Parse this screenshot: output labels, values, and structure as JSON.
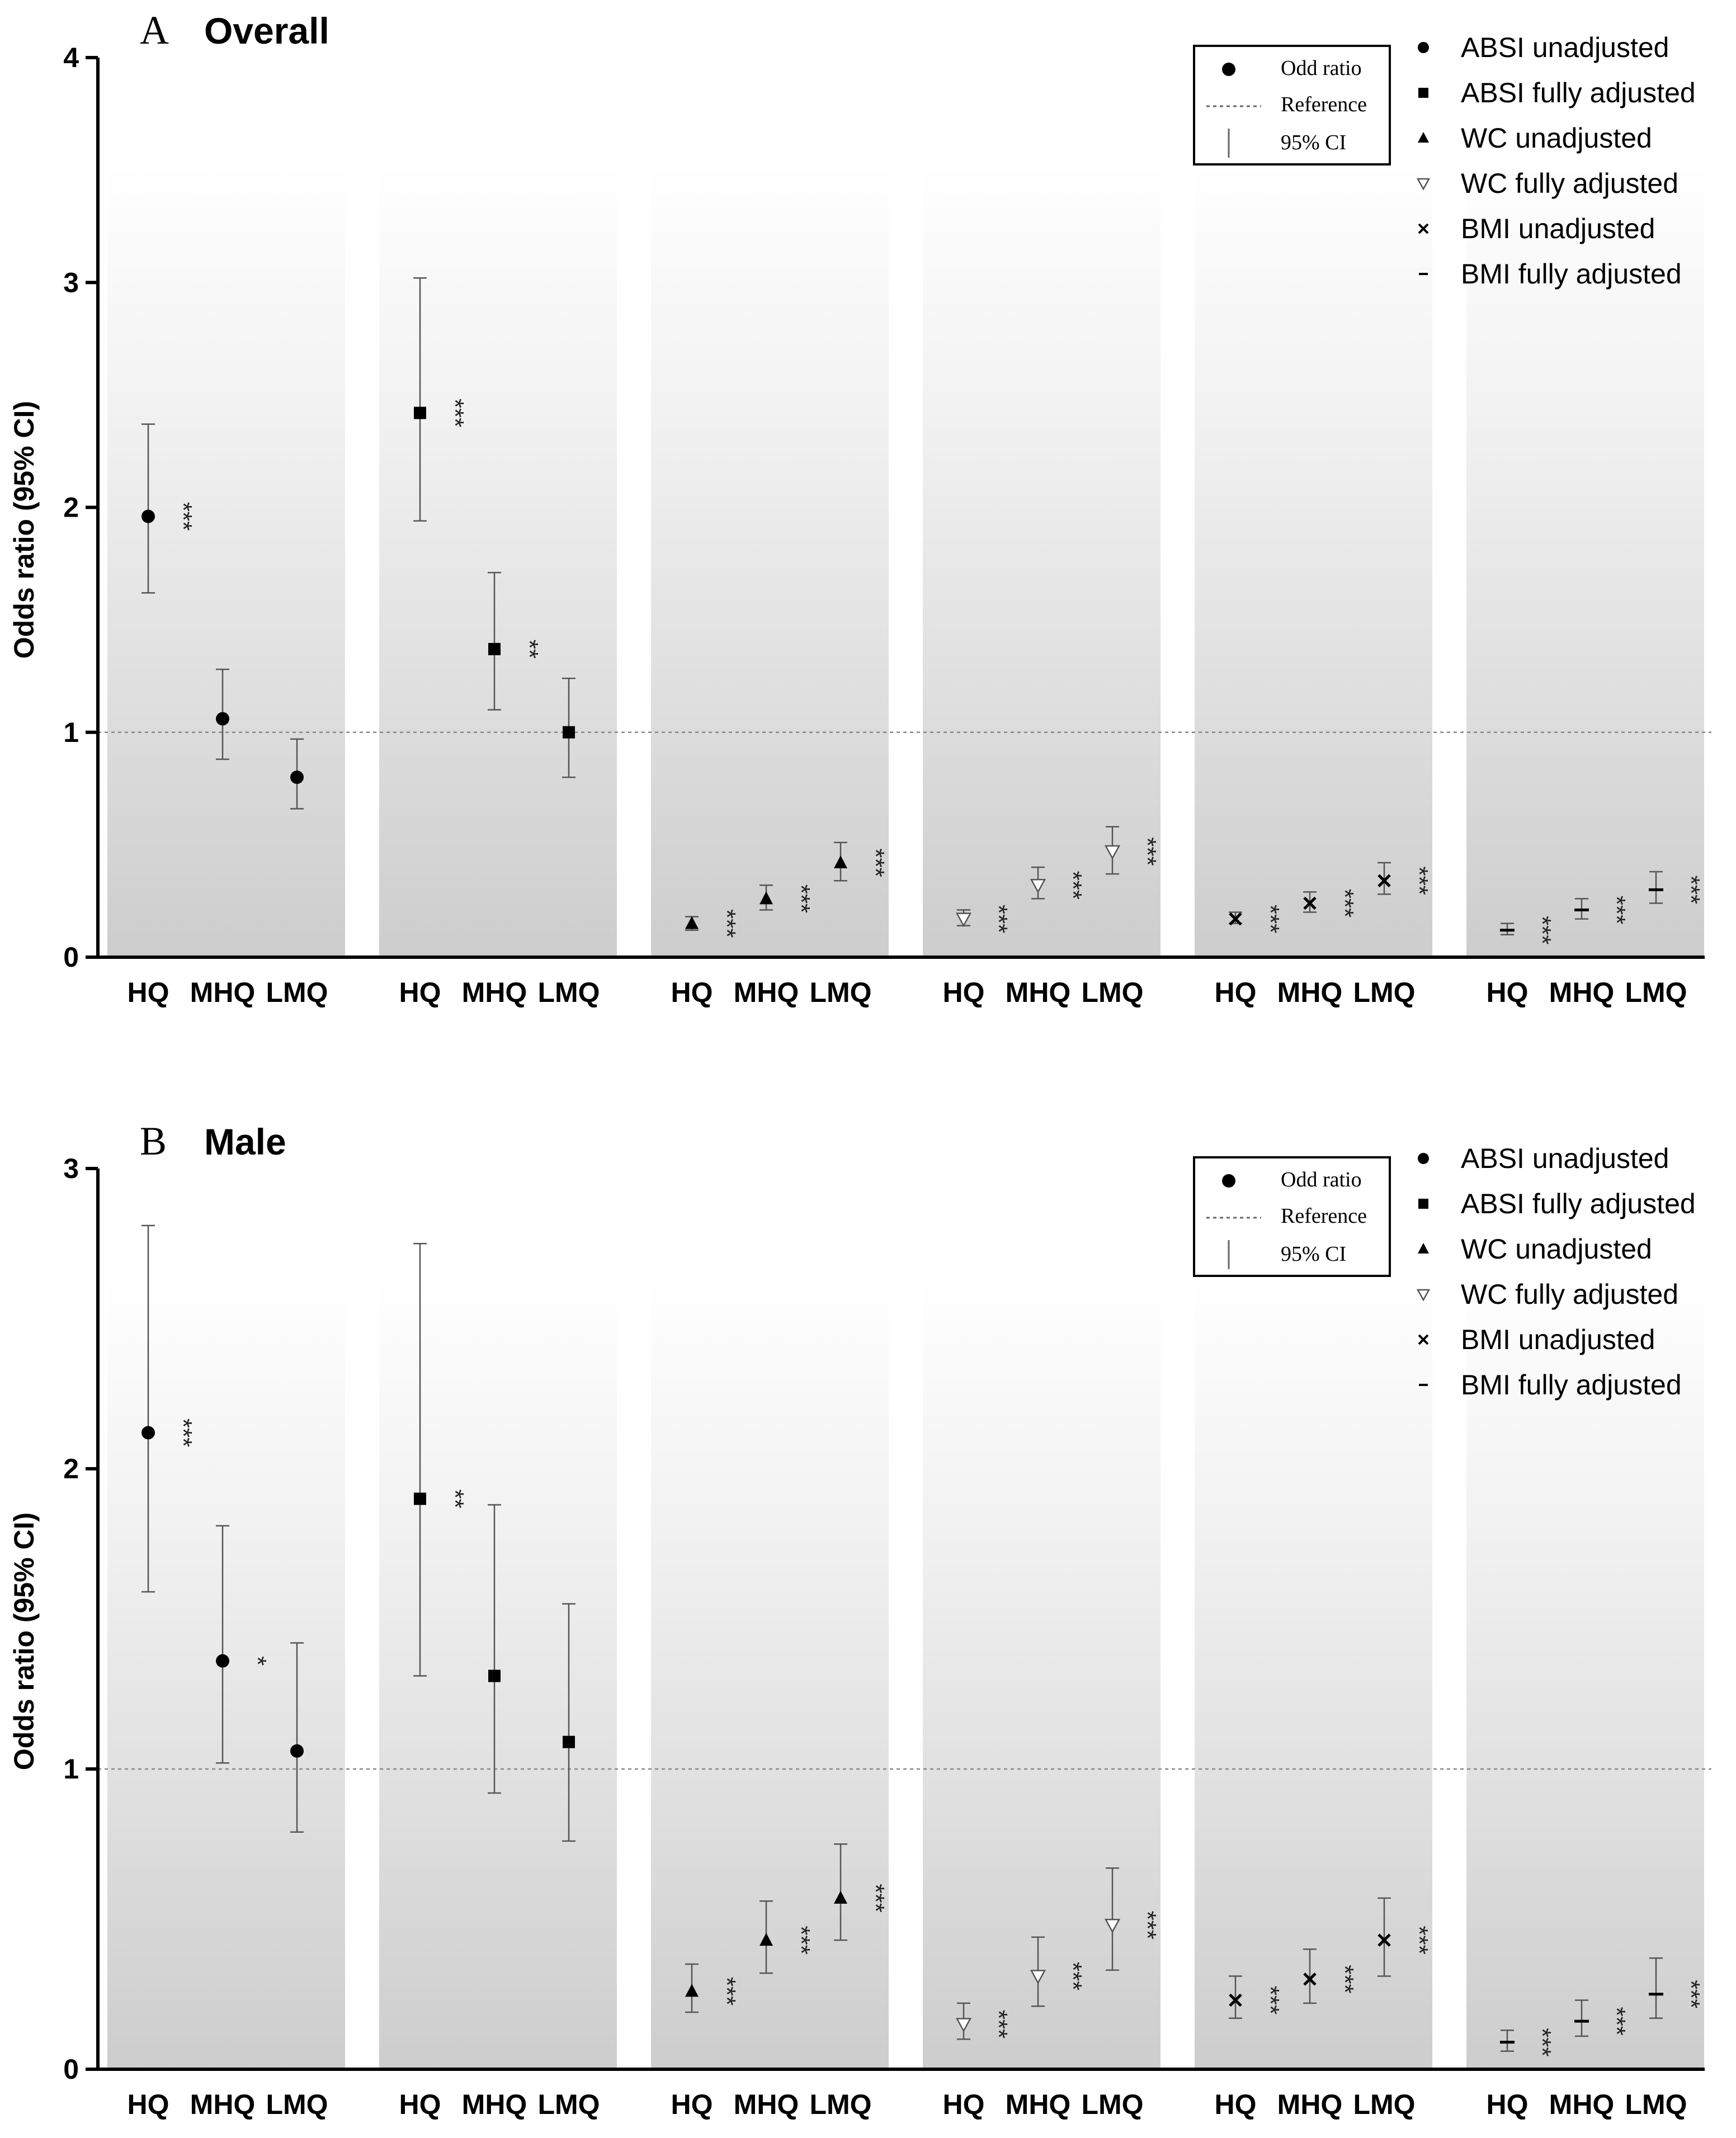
{
  "chart_data": [
    {
      "type": "scatter",
      "panel_letter": "A",
      "title": "Overall",
      "ylabel": "Odds ratio (95% CI)",
      "ylim": [
        0,
        4
      ],
      "yticks": [
        "0",
        "1",
        "2",
        "3",
        "4"
      ],
      "reference_line": 1,
      "categories": [
        "HQ",
        "MHQ",
        "LMQ"
      ],
      "series": [
        {
          "name": "ABSI unadjusted",
          "marker": "circle",
          "values": [
            1.96,
            1.06,
            0.8
          ],
          "lower": [
            1.62,
            0.88,
            0.66
          ],
          "upper": [
            2.37,
            1.28,
            0.97
          ],
          "sig": [
            "***",
            "",
            ""
          ]
        },
        {
          "name": "ABSI fully adjusted",
          "marker": "square",
          "values": [
            2.42,
            1.37,
            1.0
          ],
          "lower": [
            1.94,
            1.1,
            0.8
          ],
          "upper": [
            3.02,
            1.71,
            1.24
          ],
          "sig": [
            "***",
            "**",
            ""
          ]
        },
        {
          "name": "WC unadjusted",
          "marker": "triangle-up",
          "values": [
            0.15,
            0.26,
            0.42
          ],
          "lower": [
            0.12,
            0.21,
            0.34
          ],
          "upper": [
            0.18,
            0.32,
            0.51
          ],
          "sig": [
            "***",
            "***",
            "***"
          ]
        },
        {
          "name": "WC fully adjusted",
          "marker": "triangle-down",
          "values": [
            0.17,
            0.32,
            0.47
          ],
          "lower": [
            0.14,
            0.26,
            0.37
          ],
          "upper": [
            0.21,
            0.4,
            0.58
          ],
          "sig": [
            "***",
            "***",
            "***"
          ]
        },
        {
          "name": "BMI unadjusted",
          "marker": "x",
          "values": [
            0.17,
            0.24,
            0.34
          ],
          "lower": [
            0.15,
            0.2,
            0.28
          ],
          "upper": [
            0.2,
            0.29,
            0.42
          ],
          "sig": [
            "***",
            "***",
            "***"
          ]
        },
        {
          "name": "BMI fully adjusted",
          "marker": "dash",
          "values": [
            0.12,
            0.21,
            0.3
          ],
          "lower": [
            0.1,
            0.17,
            0.24
          ],
          "upper": [
            0.15,
            0.26,
            0.38
          ],
          "sig": [
            "***",
            "***",
            "***"
          ]
        }
      ],
      "inset_legend": [
        "Odd ratio",
        "Reference",
        "95% CI"
      ]
    },
    {
      "type": "scatter",
      "panel_letter": "B",
      "title": "Male",
      "ylabel": "Odds ratio (95% CI)",
      "ylim": [
        0,
        3
      ],
      "yticks": [
        "0",
        "1",
        "2",
        "3"
      ],
      "reference_line": 1,
      "categories": [
        "HQ",
        "MHQ",
        "LMQ"
      ],
      "series": [
        {
          "name": "ABSI unadjusted",
          "marker": "circle",
          "values": [
            2.12,
            1.36,
            1.06
          ],
          "lower": [
            1.59,
            1.02,
            0.79
          ],
          "upper": [
            2.81,
            1.81,
            1.42
          ],
          "sig": [
            "***",
            "*",
            ""
          ]
        },
        {
          "name": "ABSI fully adjusted",
          "marker": "square",
          "values": [
            1.9,
            1.31,
            1.09
          ],
          "lower": [
            1.31,
            0.92,
            0.76
          ],
          "upper": [
            2.75,
            1.88,
            1.55
          ],
          "sig": [
            "**",
            "",
            ""
          ]
        },
        {
          "name": "WC unadjusted",
          "marker": "triangle-up",
          "values": [
            0.26,
            0.43,
            0.57
          ],
          "lower": [
            0.19,
            0.32,
            0.43
          ],
          "upper": [
            0.35,
            0.56,
            0.75
          ],
          "sig": [
            "***",
            "***",
            "***"
          ]
        },
        {
          "name": "WC fully adjusted",
          "marker": "triangle-down",
          "values": [
            0.15,
            0.31,
            0.48
          ],
          "lower": [
            0.1,
            0.21,
            0.33
          ],
          "upper": [
            0.22,
            0.44,
            0.67
          ],
          "sig": [
            "***",
            "***",
            "***"
          ]
        },
        {
          "name": "BMI unadjusted",
          "marker": "x",
          "values": [
            0.23,
            0.3,
            0.43
          ],
          "lower": [
            0.17,
            0.22,
            0.31
          ],
          "upper": [
            0.31,
            0.4,
            0.57
          ],
          "sig": [
            "***",
            "***",
            "***"
          ]
        },
        {
          "name": "BMI fully adjusted",
          "marker": "dash",
          "values": [
            0.09,
            0.16,
            0.25
          ],
          "lower": [
            0.06,
            0.11,
            0.17
          ],
          "upper": [
            0.13,
            0.23,
            0.37
          ],
          "sig": [
            "***",
            "***",
            "***"
          ]
        }
      ],
      "inset_legend": [
        "Odd ratio",
        "Reference",
        "95% CI"
      ]
    }
  ]
}
